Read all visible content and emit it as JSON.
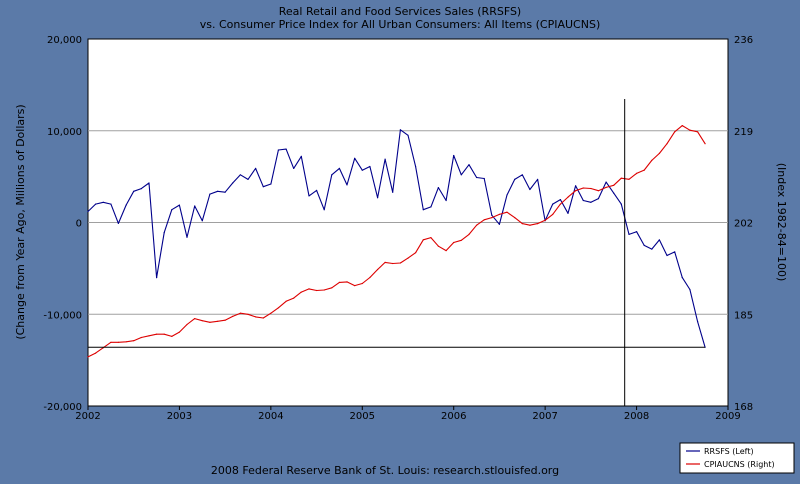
{
  "chart_data": {
    "type": "line",
    "title": "Real Retail and Food Services Sales (RRSFS)",
    "subtitle": "vs.  Consumer Price Index for All Urban Consumers: All Items (CPIAUCNS)",
    "ylabel_left": "(Change from Year Ago, Millions of Dollars)",
    "ylabel_right": "(Index 1982-84=100)",
    "footer": "2008 Federal Reserve Bank of St. Louis: research.stlouisfed.org",
    "xlim": [
      2002,
      2009
    ],
    "ylim_left": [
      -20000,
      20000
    ],
    "ylim_right": [
      168,
      236
    ],
    "x_ticks": [
      "2002",
      "2003",
      "2004",
      "2005",
      "2006",
      "2007",
      "2008",
      "2009"
    ],
    "y_ticks_left": [
      "-20,000",
      "-10,000",
      "0",
      "10,000",
      "20,000"
    ],
    "y_ticks_right": [
      "168",
      "185",
      "202",
      "219",
      "236"
    ],
    "grid": true,
    "legend_position": "bottom-right",
    "series": [
      {
        "name": "RRSFS (Left)",
        "axis": "left",
        "color": "#00008b",
        "x": [
          2002.0,
          2002.083,
          2002.167,
          2002.25,
          2002.333,
          2002.417,
          2002.5,
          2002.583,
          2002.667,
          2002.75,
          2002.833,
          2002.917,
          2003.0,
          2003.083,
          2003.167,
          2003.25,
          2003.333,
          2003.417,
          2003.5,
          2003.583,
          2003.667,
          2003.75,
          2003.833,
          2003.917,
          2004.0,
          2004.083,
          2004.167,
          2004.25,
          2004.333,
          2004.417,
          2004.5,
          2004.583,
          2004.667,
          2004.75,
          2004.833,
          2004.917,
          2005.0,
          2005.083,
          2005.167,
          2005.25,
          2005.333,
          2005.417,
          2005.5,
          2005.583,
          2005.667,
          2005.75,
          2005.833,
          2005.917,
          2006.0,
          2006.083,
          2006.167,
          2006.25,
          2006.333,
          2006.417,
          2006.5,
          2006.583,
          2006.667,
          2006.75,
          2006.833,
          2006.917,
          2007.0,
          2007.083,
          2007.167,
          2007.25,
          2007.333,
          2007.417,
          2007.5,
          2007.583,
          2007.667,
          2007.75,
          2007.833,
          2007.917,
          2008.0,
          2008.083,
          2008.167,
          2008.25,
          2008.333,
          2008.417,
          2008.5,
          2008.583,
          2008.667,
          2008.75
        ],
        "values": [
          1200,
          2000,
          2200,
          2000,
          -100,
          1900,
          3400,
          3700,
          4300,
          -6000,
          -1100,
          1400,
          1900,
          -1600,
          1800,
          200,
          3100,
          3400,
          3300,
          4300,
          5200,
          4700,
          5900,
          3900,
          4200,
          7900,
          8000,
          5900,
          7200,
          2900,
          3500,
          1400,
          5200,
          5900,
          4100,
          7000,
          5700,
          6100,
          2700,
          6900,
          3300,
          10100,
          9500,
          6100,
          1400,
          1700,
          3800,
          2400,
          7300,
          5200,
          6300,
          4900,
          4800,
          800,
          -200,
          3000,
          4700,
          5200,
          3600,
          4700,
          200,
          2000,
          2500,
          1000,
          4000,
          2400,
          2200,
          2600,
          4400,
          3200,
          2000,
          -1300,
          -1000,
          -2500,
          -2900,
          -1900,
          -3600,
          -3200,
          -6000,
          -7300,
          -10800,
          -13600
        ]
      },
      {
        "name": "CPIAUCNS (Right)",
        "axis": "right",
        "color": "#dd0000",
        "x": [
          2002.0,
          2002.083,
          2002.167,
          2002.25,
          2002.333,
          2002.417,
          2002.5,
          2002.583,
          2002.667,
          2002.75,
          2002.833,
          2002.917,
          2003.0,
          2003.083,
          2003.167,
          2003.25,
          2003.333,
          2003.417,
          2003.5,
          2003.583,
          2003.667,
          2003.75,
          2003.833,
          2003.917,
          2004.0,
          2004.083,
          2004.167,
          2004.25,
          2004.333,
          2004.417,
          2004.5,
          2004.583,
          2004.667,
          2004.75,
          2004.833,
          2004.917,
          2005.0,
          2005.083,
          2005.167,
          2005.25,
          2005.333,
          2005.417,
          2005.5,
          2005.583,
          2005.667,
          2005.75,
          2005.833,
          2005.917,
          2006.0,
          2006.083,
          2006.167,
          2006.25,
          2006.333,
          2006.417,
          2006.5,
          2006.583,
          2006.667,
          2006.75,
          2006.833,
          2006.917,
          2007.0,
          2007.083,
          2007.167,
          2007.25,
          2007.333,
          2007.417,
          2007.5,
          2007.583,
          2007.667,
          2007.75,
          2007.833,
          2007.917,
          2008.0,
          2008.083,
          2008.167,
          2008.25,
          2008.333,
          2008.417,
          2008.5,
          2008.583,
          2008.667,
          2008.75
        ],
        "values": [
          177.1,
          177.8,
          178.8,
          179.8,
          179.8,
          179.9,
          180.1,
          180.7,
          181.0,
          181.3,
          181.3,
          180.9,
          181.7,
          183.1,
          184.2,
          183.8,
          183.5,
          183.7,
          183.9,
          184.6,
          185.2,
          185.0,
          184.5,
          184.3,
          185.2,
          186.2,
          187.4,
          188.0,
          189.1,
          189.7,
          189.4,
          189.5,
          189.9,
          190.9,
          191.0,
          190.3,
          190.7,
          191.8,
          193.3,
          194.6,
          194.4,
          194.5,
          195.4,
          196.4,
          198.8,
          199.2,
          197.6,
          196.8,
          198.3,
          198.7,
          199.8,
          201.5,
          202.5,
          202.9,
          203.5,
          203.9,
          202.9,
          201.8,
          201.5,
          201.8,
          202.4,
          203.5,
          205.4,
          206.7,
          207.9,
          208.4,
          208.3,
          207.9,
          208.5,
          208.9,
          210.2,
          210.0,
          211.1,
          211.7,
          213.5,
          214.8,
          216.6,
          218.8,
          219.96,
          219.1,
          218.8,
          216.6
        ]
      }
    ],
    "annotations": {
      "vertical_line_x": 2007.87,
      "horizontal_line_y": -13600
    }
  }
}
